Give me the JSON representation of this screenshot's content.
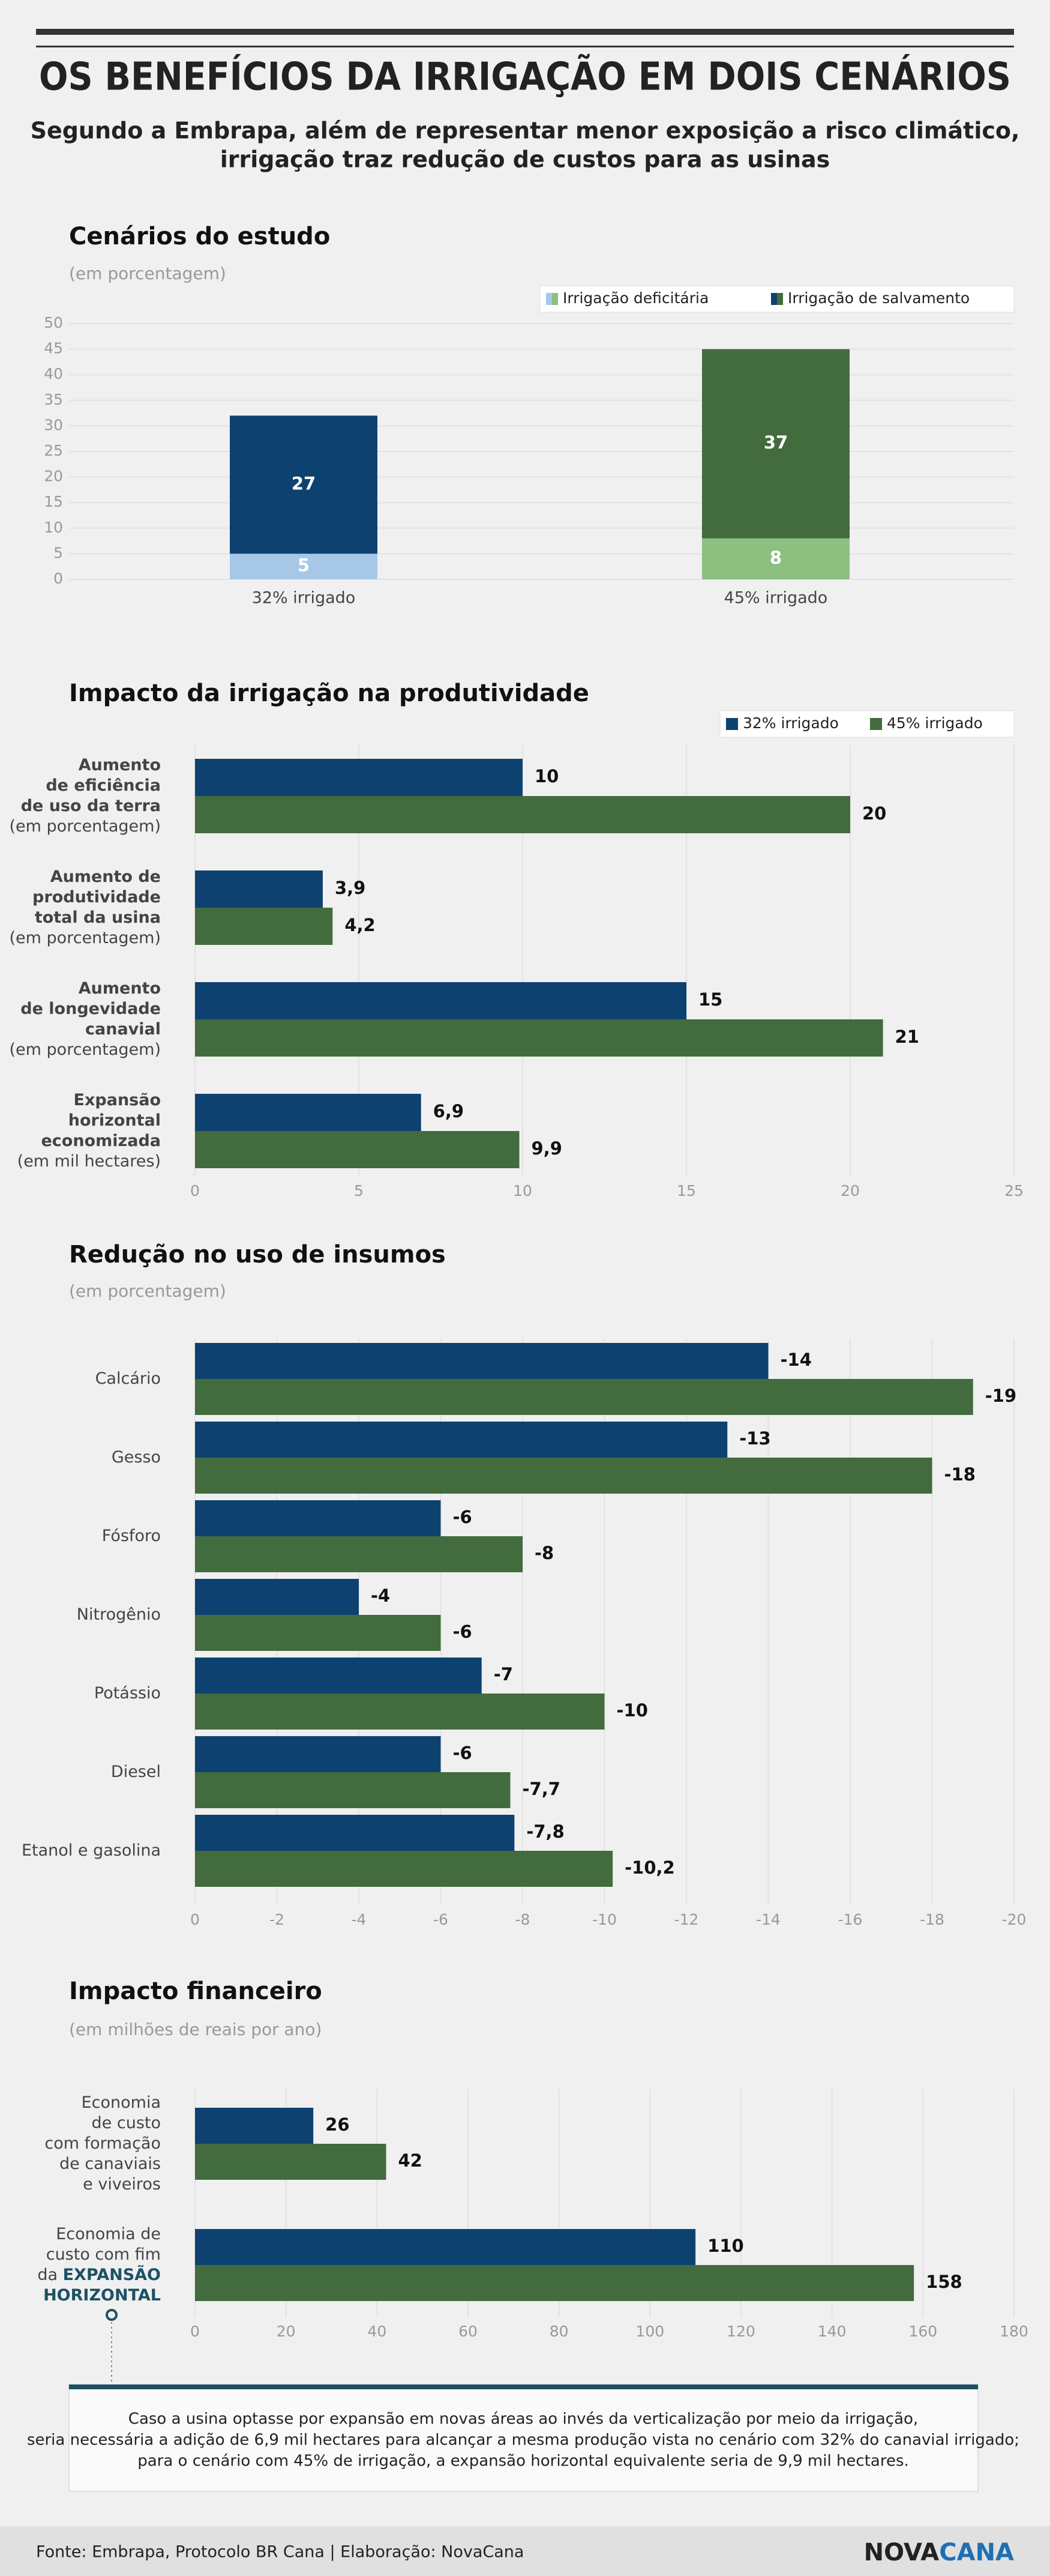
{
  "header": {
    "title": "OS BENEFÍCIOS DA IRRIGAÇÃO EM DOIS CENÁRIOS",
    "subtitle": [
      "Segundo a Embrapa, além de representar menor exposição a risco climático,",
      "irrigação traz redução de custos para as usinas"
    ]
  },
  "chart_data": [
    {
      "type": "stacked-bar",
      "title": "Cenários do estudo",
      "subtitle": "(em porcentagem)",
      "categories": [
        "32% irrigado",
        "45% irrigado"
      ],
      "series": [
        {
          "name": "Irrigação deficitária",
          "colors": [
            "#a6c8e6",
            "#8dbf80"
          ],
          "values": [
            5,
            8
          ]
        },
        {
          "name": "Irrigação de salvamento",
          "colors": [
            "#0d4270",
            "#426b3e"
          ],
          "values": [
            27,
            37
          ]
        }
      ],
      "ylim": [
        0,
        50
      ],
      "yticks": [
        0,
        5,
        10,
        15,
        20,
        25,
        30,
        35,
        40,
        45,
        50
      ],
      "grid": true,
      "legend": "top-right"
    },
    {
      "type": "hbar",
      "title": "Impacto da irrigação na produtividade",
      "categories": [
        [
          "Aumento",
          "de eficiência",
          "de uso da terra"
        ],
        [
          "Aumento de",
          "produtividade",
          "total da usina"
        ],
        [
          "Aumento",
          "de longevidade",
          "canavial"
        ],
        [
          "Expansão",
          "horizontal",
          "economizada"
        ]
      ],
      "category_notes": [
        "(em porcentagem)",
        "(em porcentagem)",
        "(em porcentagem)",
        "(em mil hectares)"
      ],
      "series": [
        {
          "name": "32% irrigado",
          "color": "#0d4270",
          "values": [
            10,
            3.9,
            15,
            6.9
          ],
          "value_labels": [
            "10",
            "3,9",
            "15",
            "6,9"
          ]
        },
        {
          "name": "45% irrigado",
          "color": "#426b3e",
          "values": [
            20,
            4.2,
            21,
            9.9
          ],
          "value_labels": [
            "20",
            "4,2",
            "21",
            "9,9"
          ]
        }
      ],
      "xlim": [
        0,
        25
      ],
      "xticks": [
        0,
        5,
        10,
        15,
        20,
        25
      ],
      "grid": true,
      "legend": "top-right"
    },
    {
      "type": "hbar",
      "title": "Redução no uso de insumos",
      "subtitle": "(em porcentagem)",
      "categories": [
        [
          "Calcário"
        ],
        [
          "Gesso"
        ],
        [
          "Fósforo"
        ],
        [
          "Nitrogênio"
        ],
        [
          "Potássio"
        ],
        [
          "Diesel"
        ],
        [
          "Etanol e gasolina"
        ]
      ],
      "series": [
        {
          "color": "#0d4270",
          "values": [
            -14,
            -13,
            -6,
            -4,
            -7,
            -6,
            -7.8
          ],
          "value_labels": [
            "-14",
            "-13",
            "-6",
            "-4",
            "-7",
            "-6",
            "-7,8"
          ]
        },
        {
          "color": "#426b3e",
          "values": [
            -19,
            -18,
            -8,
            -6,
            -10,
            -7.7,
            -10.2
          ],
          "value_labels": [
            "-19",
            "-18",
            "-8",
            "-6",
            "-10",
            "-7,7",
            "-10,2"
          ]
        }
      ],
      "xlim": [
        0,
        -20
      ],
      "xticks": [
        0,
        -2,
        -4,
        -6,
        -8,
        -10,
        -12,
        -14,
        -16,
        -18,
        -20
      ],
      "grid": true
    },
    {
      "type": "hbar",
      "title": "Impacto financeiro",
      "subtitle": "(em milhões de reais por ano)",
      "categories": [
        [
          "Economia",
          "de custo",
          "com formação",
          "de canaviais",
          "e viveiros"
        ],
        [
          "Economia de",
          "custo com fim",
          "da"
        ]
      ],
      "highlight": [
        "EXPANSÃO",
        "HORIZONTAL"
      ],
      "series": [
        {
          "color": "#0d4270",
          "values": [
            26,
            110
          ]
        },
        {
          "color": "#426b3e",
          "values": [
            42,
            158
          ]
        }
      ],
      "xlim": [
        0,
        180
      ],
      "xticks": [
        0,
        20,
        40,
        60,
        80,
        100,
        120,
        140,
        160,
        180
      ],
      "grid": true
    }
  ],
  "note": [
    "Caso a usina optasse por expansão em novas áreas ao invés da verticalização por meio da irrigação,",
    "seria necessária a adição de 6,9 mil hectares para alcançar a mesma produção vista no cenário com 32% do canavial irrigado;",
    "para o cenário com 45% de irrigação, a expansão horizontal equivalente seria de 9,9 mil hectares."
  ],
  "footer": {
    "source": "Fonte: Embrapa, Protocolo BR Cana | Elaboração: NovaCana",
    "logo": [
      "NOVA",
      "CANA"
    ]
  }
}
